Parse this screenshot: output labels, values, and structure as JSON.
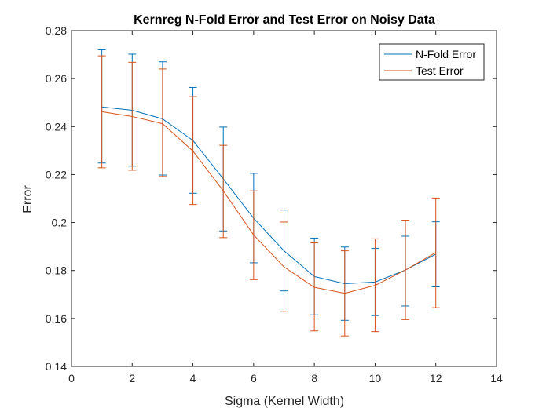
{
  "chart_data": {
    "type": "line",
    "title": "Kernreg N-Fold Error and Test Error on Noisy Data",
    "xlabel": "Sigma (Kernel Width)",
    "ylabel": "Error",
    "xlim": [
      0,
      14
    ],
    "ylim": [
      0.14,
      0.28
    ],
    "xticks": [
      0,
      2,
      4,
      6,
      8,
      10,
      12,
      14
    ],
    "yticks": [
      0.14,
      0.16,
      0.18,
      0.2,
      0.22,
      0.24,
      0.26,
      0.28
    ],
    "xtick_labels": [
      "0",
      "2",
      "4",
      "6",
      "8",
      "10",
      "12",
      "14"
    ],
    "ytick_labels": [
      "0.14",
      "0.16",
      "0.18",
      "0.2",
      "0.22",
      "0.24",
      "0.26",
      "0.28"
    ],
    "grid": false,
    "legend_position": "top-right",
    "x": [
      1,
      2,
      3,
      4,
      5,
      6,
      7,
      8,
      9,
      10,
      11,
      12
    ],
    "series": [
      {
        "name": "N-Fold Error",
        "color": "#0072BD",
        "values": [
          0.2482,
          0.2468,
          0.2432,
          0.2342,
          0.2182,
          0.2018,
          0.1882,
          0.1775,
          0.1745,
          0.1752,
          0.1802,
          0.1868
        ],
        "error_low": [
          0.2248,
          0.2235,
          0.2198,
          0.2122,
          0.1965,
          0.1832,
          0.1715,
          0.1615,
          0.1592,
          0.1612,
          0.1652,
          0.1732
        ],
        "error_high": [
          0.272,
          0.2702,
          0.267,
          0.2563,
          0.2398,
          0.2205,
          0.2052,
          0.1935,
          0.1898,
          0.1892,
          0.1943,
          0.2003
        ]
      },
      {
        "name": "Test Error",
        "color": "#D95319",
        "values": [
          0.2462,
          0.2442,
          0.2412,
          0.2298,
          0.2132,
          0.1948,
          0.1815,
          0.173,
          0.1705,
          0.1738,
          0.1802,
          0.1875
        ],
        "error_low": [
          0.2228,
          0.2218,
          0.2192,
          0.2075,
          0.1937,
          0.1762,
          0.1628,
          0.1548,
          0.1527,
          0.1545,
          0.1595,
          0.1645
        ],
        "error_high": [
          0.2695,
          0.2668,
          0.264,
          0.2525,
          0.2322,
          0.2132,
          0.2002,
          0.1915,
          0.1882,
          0.1932,
          0.201,
          0.2102
        ]
      }
    ]
  }
}
